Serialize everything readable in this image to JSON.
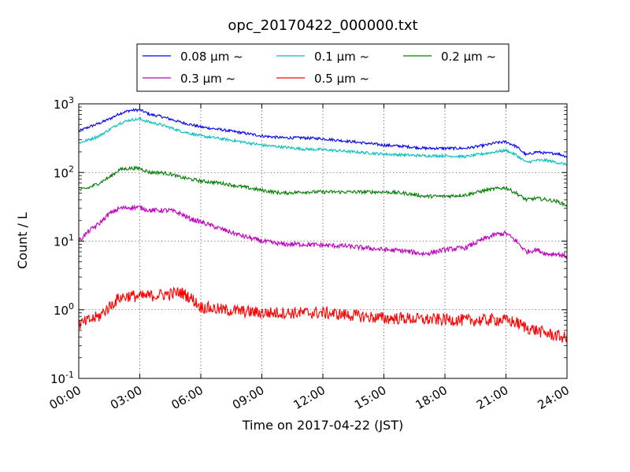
{
  "chart_data": {
    "type": "line",
    "title": "opc_20170422_000000.txt",
    "xlabel": "Time on 2017-04-22 (JST)",
    "ylabel": "Count / L",
    "x_unit": "hour",
    "xlim": [
      0,
      24
    ],
    "ylim": [
      0.1,
      1000
    ],
    "y_scale": "log",
    "grid": true,
    "legend_position": "top-center, above plot",
    "x_ticks": [
      "00:00",
      "03:00",
      "06:00",
      "09:00",
      "12:00",
      "15:00",
      "18:00",
      "21:00",
      "24:00"
    ],
    "y_ticks": [
      {
        "value": 0.1,
        "base": "10",
        "exp": "-1"
      },
      {
        "value": 1,
        "base": "10",
        "exp": "0"
      },
      {
        "value": 10,
        "base": "10",
        "exp": "1"
      },
      {
        "value": 100,
        "base": "10",
        "exp": "2"
      },
      {
        "value": 1000,
        "base": "10",
        "exp": "3"
      }
    ],
    "x": [
      0,
      0.5,
      1,
      1.5,
      2,
      2.5,
      3,
      3.5,
      4,
      4.5,
      5,
      5.5,
      6,
      7,
      8,
      9,
      10,
      11,
      12,
      13,
      14,
      15,
      16,
      17,
      18,
      19,
      20,
      20.5,
      21,
      21.5,
      22,
      22.5,
      23,
      23.5,
      24
    ],
    "series": [
      {
        "name": "0.08 μm ~",
        "color": "#0000ff",
        "noise": 0.02,
        "values": [
          400,
          460,
          520,
          600,
          720,
          800,
          820,
          700,
          660,
          600,
          540,
          500,
          460,
          420,
          380,
          340,
          320,
          320,
          310,
          290,
          270,
          250,
          240,
          225,
          225,
          225,
          250,
          270,
          280,
          240,
          180,
          200,
          190,
          190,
          170
        ]
      },
      {
        "name": "0.1 μm ~",
        "color": "#00bfbf",
        "noise": 0.02,
        "values": [
          270,
          300,
          340,
          420,
          520,
          580,
          600,
          540,
          500,
          450,
          400,
          370,
          340,
          310,
          280,
          250,
          235,
          220,
          215,
          205,
          195,
          185,
          180,
          175,
          175,
          170,
          190,
          200,
          210,
          180,
          140,
          150,
          150,
          140,
          130
        ]
      },
      {
        "name": "0.2 μm ~",
        "color": "#008000",
        "noise": 0.025,
        "values": [
          55,
          60,
          70,
          85,
          110,
          115,
          115,
          100,
          100,
          95,
          85,
          80,
          75,
          70,
          62,
          55,
          50,
          52,
          52,
          52,
          52,
          52,
          50,
          45,
          45,
          47,
          55,
          58,
          60,
          50,
          40,
          42,
          40,
          38,
          33
        ]
      },
      {
        "name": "0.3 μm ~",
        "color": "#bf00bf",
        "noise": 0.035,
        "values": [
          10,
          14,
          18,
          25,
          30,
          31,
          31,
          28,
          28,
          28,
          25,
          21,
          19,
          15,
          12,
          10,
          9,
          9,
          8.7,
          8.5,
          8,
          7.5,
          7.2,
          6.5,
          7.5,
          8,
          11,
          12.5,
          13,
          10,
          7,
          7.5,
          6.5,
          6.5,
          6
        ]
      },
      {
        "name": "0.5 μm ~",
        "color": "#ff0000",
        "noise": 0.09,
        "values": [
          0.6,
          0.7,
          0.8,
          1.1,
          1.5,
          1.6,
          1.55,
          1.6,
          1.65,
          1.7,
          1.8,
          1.5,
          1.1,
          1.0,
          0.95,
          0.9,
          0.9,
          0.9,
          0.9,
          0.85,
          0.8,
          0.75,
          0.75,
          0.72,
          0.72,
          0.7,
          0.7,
          0.72,
          0.7,
          0.65,
          0.55,
          0.5,
          0.45,
          0.42,
          0.38
        ]
      }
    ]
  }
}
